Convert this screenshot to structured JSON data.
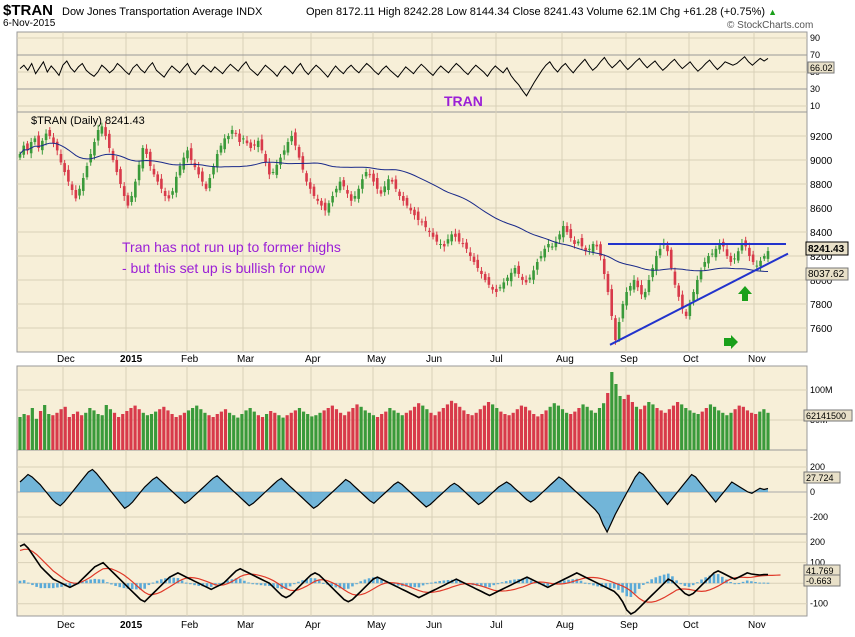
{
  "header": {
    "symbol": "$TRAN",
    "title": "Dow Jones Transportation Average INDX",
    "date": "6-Nov-2015",
    "quote": "Open 8172.11  High 8242.28  Low 8144.34  Close 8241.43  Volume 62.1M  Chg +61.28 (+0.75%)",
    "quote_arrow": "▲",
    "credit": "© StockCharts.com"
  },
  "colors": {
    "panel_bg": "#f7efd8",
    "grid": "#d9d0b8",
    "price_label_bg": "#e8e0c8",
    "up_bar": "#3a9a3a",
    "down_bar": "#d83a4a",
    "ma_line": "#1a2a8a",
    "trend_line": "#2233cc",
    "annotation_text": "#9b1fd6",
    "arrow_green": "#1aa01a"
  },
  "rsi_panel": {
    "label": "TRAN",
    "value_label": "66.02",
    "ticks": [
      "90",
      "70",
      "50",
      "30",
      "10"
    ]
  },
  "price_panel": {
    "legend": "$TRAN (Daily) 8241.43",
    "last_label": "8241.43",
    "ma_label": "8037.62",
    "annotation_line1": "Tran has not run up to former highs",
    "annotation_line2": "- but this set up is bullish for now"
  },
  "volume_panel": {
    "value_label": "62141500",
    "ticks": [
      "100M",
      "50M"
    ]
  },
  "cci_panel": {
    "value_label": "27.724",
    "ticks": [
      "200",
      "0",
      "-200"
    ]
  },
  "macd_panel": {
    "value_label1": "41.769",
    "value_label2": "-0.663",
    "ticks": [
      "200",
      "100",
      "0",
      "-100"
    ]
  },
  "x_axis": {
    "labels": [
      "Dec",
      "2015",
      "Feb",
      "Mar",
      "Apr",
      "May",
      "Jun",
      "Jul",
      "Aug",
      "Sep",
      "Oct",
      "Nov"
    ]
  },
  "chart_data": [
    {
      "type": "line",
      "title": "TRAN",
      "series": [
        {
          "values": [
            54,
            58,
            52,
            60,
            48,
            55,
            62,
            50,
            57,
            52,
            46,
            58,
            63,
            55,
            50,
            56,
            60,
            52,
            48,
            45,
            50,
            58,
            54,
            49,
            53,
            60,
            56,
            51,
            47,
            55,
            59,
            53,
            49,
            56,
            61,
            52,
            48,
            44,
            51,
            57,
            53,
            49,
            55,
            60,
            51,
            47,
            53,
            58,
            54,
            50,
            56,
            52,
            48,
            54,
            59,
            55,
            51,
            57,
            62,
            54,
            50,
            46,
            52,
            58,
            54,
            50,
            45,
            52,
            57,
            53,
            48,
            55,
            60,
            52,
            47,
            53,
            58,
            54,
            49,
            44,
            51,
            57,
            52,
            48,
            54,
            58,
            53,
            49,
            55,
            60,
            56,
            51,
            47,
            53,
            57,
            52,
            48,
            44,
            50,
            56,
            52,
            48,
            54,
            59,
            55,
            50,
            46,
            52,
            57,
            53,
            49,
            55,
            60,
            56,
            51,
            47,
            53,
            58,
            54,
            50,
            45,
            52,
            57,
            53,
            49,
            55,
            46,
            40,
            35,
            28,
            22,
            30,
            38,
            45,
            52,
            58,
            62,
            55,
            50,
            56,
            60,
            54,
            49,
            55,
            60,
            65,
            58,
            52,
            56,
            62,
            67,
            60,
            55,
            59,
            64,
            58,
            53,
            57,
            62,
            66,
            60,
            55,
            59,
            63,
            57,
            52,
            56,
            61,
            65,
            59,
            54,
            58,
            62,
            56,
            51,
            55,
            60,
            64,
            58,
            53,
            57,
            62,
            60,
            58,
            60,
            64,
            68,
            62,
            58,
            62,
            66,
            63,
            66
          ]
        }
      ],
      "ylim": [
        10,
        90
      ],
      "yticks": [
        90,
        70,
        50,
        30,
        10
      ]
    },
    {
      "type": "candlestick",
      "title": "$TRAN (Daily) 8241.43",
      "close": [
        9050,
        9120,
        9080,
        9150,
        9180,
        9100,
        9160,
        9220,
        9200,
        9140,
        9080,
        8980,
        8900,
        8820,
        8750,
        8680,
        8760,
        8850,
        8950,
        9050,
        9150,
        9250,
        9280,
        9200,
        9100,
        9000,
        8900,
        8800,
        8700,
        8620,
        8700,
        8820,
        8960,
        9100,
        9050,
        8950,
        8880,
        8820,
        8760,
        8700,
        8680,
        8740,
        8860,
        8950,
        9020,
        9080,
        9000,
        8940,
        8880,
        8820,
        8760,
        8850,
        8950,
        9050,
        9120,
        9180,
        9200,
        9250,
        9220,
        9150,
        9180,
        9140,
        9100,
        9120,
        9160,
        9080,
        8980,
        8880,
        8900,
        8960,
        9020,
        9080,
        9150,
        9200,
        9120,
        9020,
        8920,
        8820,
        8760,
        8700,
        8660,
        8620,
        8580,
        8640,
        8700,
        8760,
        8820,
        8780,
        8720,
        8660,
        8700,
        8760,
        8840,
        8900,
        8880,
        8820,
        8760,
        8720,
        8780,
        8840,
        8820,
        8760,
        8700,
        8660,
        8620,
        8580,
        8540,
        8500,
        8480,
        8440,
        8400,
        8360,
        8320,
        8300,
        8280,
        8340,
        8380,
        8360,
        8320,
        8300,
        8260,
        8200,
        8150,
        8100,
        8050,
        8000,
        7960,
        7920,
        7900,
        7940,
        7980,
        8020,
        8060,
        8100,
        8050,
        8000,
        7980,
        8020,
        8080,
        8150,
        8200,
        8260,
        8300,
        8280,
        8320,
        8380,
        8450,
        8400,
        8350,
        8300,
        8320,
        8280,
        8240,
        8260,
        8300,
        8280,
        8200,
        8050,
        7900,
        7700,
        7500,
        7650,
        7800,
        7900,
        7950,
        8000,
        7940,
        7880,
        7900,
        8000,
        8100,
        8200,
        8260,
        8300,
        8240,
        8100,
        7960,
        7860,
        7760,
        7700,
        7800,
        7900,
        8000,
        8080,
        8150,
        8200,
        8220,
        8260,
        8300,
        8280,
        8200,
        8150,
        8180,
        8240,
        8300,
        8280,
        8200,
        8150,
        8120,
        8160,
        8200,
        8241
      ],
      "moving_average_value": 8037.62,
      "resistance_level": 8300,
      "ylim": [
        7400,
        9400
      ],
      "yticks": [
        9200,
        9000,
        8800,
        8600,
        8400,
        8200,
        8000,
        7800,
        7600
      ]
    },
    {
      "type": "bar",
      "title": "Volume",
      "values": [
        55,
        60,
        58,
        70,
        52,
        65,
        75,
        60,
        58,
        62,
        68,
        72,
        55,
        60,
        64,
        58,
        62,
        70,
        66,
        60,
        58,
        75,
        68,
        62,
        55,
        60,
        65,
        70,
        74,
        68,
        62,
        58,
        60,
        64,
        68,
        72,
        66,
        60,
        55,
        58,
        62,
        66,
        70,
        74,
        68,
        62,
        58,
        55,
        60,
        64,
        68,
        62,
        58,
        54,
        60,
        66,
        70,
        64,
        58,
        55,
        60,
        65,
        62,
        58,
        54,
        58,
        62,
        66,
        70,
        64,
        60,
        56,
        58,
        62,
        66,
        70,
        74,
        68,
        62,
        58,
        64,
        70,
        76,
        72,
        66,
        62,
        58,
        55,
        60,
        64,
        70,
        66,
        62,
        58,
        62,
        66,
        72,
        78,
        74,
        68,
        62,
        58,
        64,
        70,
        76,
        82,
        78,
        72,
        66,
        60,
        58,
        62,
        68,
        74,
        80,
        76,
        70,
        64,
        60,
        58,
        62,
        68,
        74,
        72,
        66,
        60,
        56,
        60,
        66,
        72,
        78,
        74,
        68,
        62,
        60,
        64,
        70,
        76,
        72,
        66,
        62,
        70,
        78,
        95,
        130,
        110,
        90,
        85,
        92,
        80,
        72,
        68,
        74,
        80,
        76,
        70,
        66,
        62,
        68,
        74,
        80,
        76,
        70,
        66,
        62,
        60,
        64,
        70,
        76,
        72,
        66,
        62,
        58,
        62,
        68,
        74,
        72,
        66,
        62,
        60,
        64,
        68,
        62
      ]
    },
    {
      "type": "area",
      "title": "CCI",
      "values": [
        80,
        110,
        140,
        120,
        90,
        60,
        20,
        -20,
        -60,
        -90,
        -110,
        -80,
        -40,
        0,
        40,
        80,
        120,
        160,
        180,
        150,
        110,
        70,
        30,
        -10,
        -50,
        -90,
        -130,
        -110,
        -80,
        -40,
        0,
        40,
        70,
        100,
        120,
        90,
        60,
        30,
        0,
        -30,
        -60,
        -90,
        -70,
        -40,
        -10,
        20,
        50,
        80,
        110,
        130,
        100,
        70,
        40,
        10,
        -20,
        -50,
        -80,
        -110,
        -90,
        -60,
        -30,
        0,
        30,
        60,
        90,
        110,
        80,
        50,
        20,
        -10,
        -40,
        -70,
        -100,
        -130,
        -110,
        -80,
        -50,
        -20,
        10,
        40,
        70,
        100,
        80,
        50,
        20,
        -10,
        -40,
        -70,
        -90,
        -60,
        -30,
        0,
        30,
        60,
        80,
        60,
        30,
        0,
        -30,
        -60,
        -90,
        -120,
        -100,
        -70,
        -40,
        -10,
        20,
        50,
        70,
        50,
        20,
        -10,
        -40,
        -70,
        -100,
        -80,
        -50,
        -20,
        10,
        40,
        60,
        80,
        60,
        30,
        0,
        -30,
        -60,
        -80,
        -60,
        -30,
        0,
        30,
        60,
        90,
        120,
        100,
        70,
        40,
        10,
        -20,
        -50,
        -80,
        -110,
        -140,
        -180,
        -260,
        -320,
        -250,
        -180,
        -120,
        -60,
        0,
        60,
        120,
        160,
        140,
        100,
        60,
        20,
        -20,
        -60,
        -100,
        -60,
        -20,
        20,
        60,
        100,
        140,
        120,
        80,
        40,
        0,
        -40,
        -80,
        -40,
        0,
        40,
        80,
        60,
        40,
        20,
        0,
        -10,
        10,
        30,
        20,
        28
      ],
      "ylim": [
        -320,
        320
      ],
      "yticks": [
        200,
        0,
        -200
      ]
    },
    {
      "type": "line",
      "title": "MACD",
      "series": [
        {
          "values": [
            180,
            190,
            170,
            140,
            110,
            80,
            60,
            40,
            20,
            10,
            0,
            -10,
            -20,
            -10,
            0,
            20,
            40,
            60,
            80,
            90,
            100,
            80,
            60,
            40,
            20,
            0,
            -20,
            -40,
            -60,
            -80,
            -90,
            -70,
            -50,
            -30,
            -10,
            10,
            30,
            40,
            50,
            40,
            30,
            20,
            10,
            0,
            -10,
            -20,
            -30,
            -20,
            -10,
            0,
            20,
            40,
            60,
            70,
            60,
            50,
            40,
            30,
            20,
            10,
            0,
            -20,
            -40,
            -60,
            -70,
            -60,
            -40,
            -20,
            0,
            20,
            40,
            50,
            40,
            20,
            0,
            -20,
            -40,
            -60,
            -80,
            -90,
            -80,
            -60,
            -40,
            -20,
            0,
            20,
            30,
            20,
            10,
            0,
            -10,
            -20,
            -30,
            -40,
            -50,
            -60,
            -70,
            -60,
            -50,
            -40,
            -30,
            -20,
            -10,
            0,
            10,
            20,
            10,
            0,
            -10,
            -20,
            -30,
            -40,
            -50,
            -60,
            -50,
            -40,
            -30,
            -20,
            -10,
            0,
            10,
            20,
            30,
            20,
            10,
            0,
            -10,
            -20,
            -10,
            0,
            10,
            20,
            30,
            40,
            50,
            40,
            30,
            20,
            10,
            0,
            -10,
            -20,
            -30,
            -40,
            -60,
            -90,
            -130,
            -150,
            -140,
            -120,
            -100,
            -80,
            -60,
            -40,
            -20,
            0,
            20,
            10,
            -10,
            -30,
            -50,
            -60,
            -50,
            -30,
            -10,
            10,
            30,
            50,
            60,
            50,
            40,
            30,
            20,
            30,
            40,
            50,
            45,
            42,
            40,
            42,
            42
          ]
        },
        {
          "values": [
            160,
            165,
            165,
            155,
            140,
            120,
            100,
            80,
            60,
            45,
            30,
            15,
            5,
            0,
            0,
            8,
            18,
            30,
            45,
            58,
            70,
            72,
            70,
            62,
            52,
            40,
            25,
            8,
            -10,
            -28,
            -45,
            -55,
            -55,
            -50,
            -42,
            -30,
            -18,
            -5,
            8,
            18,
            25,
            28,
            26,
            22,
            15,
            8,
            0,
            -8,
            -10,
            -8,
            -2,
            8,
            20,
            32,
            40,
            44,
            44,
            41,
            36,
            30,
            22,
            12,
            0,
            -14,
            -26,
            -34,
            -36,
            -32,
            -24,
            -14,
            -2,
            10,
            16,
            17,
            12,
            4,
            -6,
            -18,
            -32,
            -45,
            -54,
            -58,
            -56,
            -50,
            -40,
            -28,
            -16,
            -6,
            1,
            3,
            2,
            -1,
            -6,
            -12,
            -20,
            -28,
            -36,
            -42,
            -45,
            -45,
            -42,
            -38,
            -32,
            -26,
            -18,
            -12,
            -6,
            -3,
            -2,
            -4,
            -8,
            -14,
            -20,
            -27,
            -34,
            -38,
            -38,
            -37,
            -34,
            -30,
            -24,
            -18,
            -10,
            -2,
            4,
            6,
            5,
            2,
            -2,
            -4,
            -4,
            -2,
            2,
            8,
            14,
            20,
            26,
            28,
            28,
            26,
            22,
            16,
            10,
            2,
            -6,
            -14,
            -24,
            -38,
            -56,
            -74,
            -86,
            -92,
            -92,
            -88,
            -80,
            -70,
            -58,
            -46,
            -33,
            -28,
            -28,
            -30,
            -34,
            -38,
            -40,
            -38,
            -32,
            -24,
            -14,
            -2,
            10,
            20,
            26,
            29,
            29,
            28,
            29,
            32,
            35,
            37,
            38,
            38,
            39,
            40
          ]
        }
      ],
      "ylim": [
        -150,
        230
      ],
      "yticks": [
        200,
        100,
        0,
        -100
      ]
    }
  ]
}
